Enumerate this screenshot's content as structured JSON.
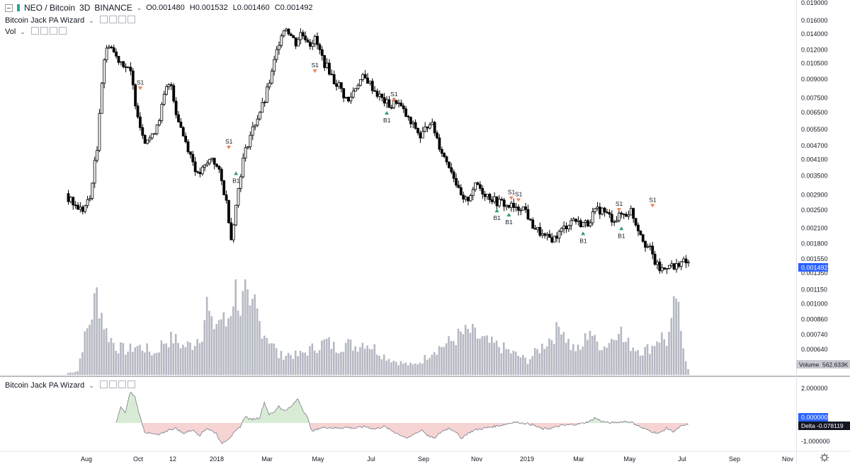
{
  "header": {
    "symbol": "NEO / Bitcoin",
    "interval": "3D",
    "exchange": "BINANCE",
    "open": "O0.001480",
    "high": "H0.001532",
    "low": "L0.001460",
    "close": "C0.001492"
  },
  "indicators": {
    "pa_wizard": "Bitcoin Jack PA Wizard",
    "vol": "Vol",
    "lower": "Bitcoin Jack PA Wizard"
  },
  "price_axis": {
    "ticks": [
      "0.019000",
      "0.016000",
      "0.014000",
      "0.012000",
      "0.010500",
      "0.009000",
      "0.007500",
      "0.006500",
      "0.005500",
      "0.004700",
      "0.004100",
      "0.003500",
      "0.002900",
      "0.002500",
      "0.002100",
      "0.001800",
      "0.001550",
      "0.001350",
      "0.001150",
      "0.001000",
      "0.000860",
      "0.000740",
      "0.000640"
    ],
    "last_price": "0.001492",
    "volume_label": "Volume",
    "volume_value": "562.633K"
  },
  "lower_axis": {
    "ticks": [
      "2.000000",
      "-1.000000"
    ],
    "zero_label": "0.000000",
    "delta_label": "Delta",
    "delta_value": "-0.078119"
  },
  "time_axis": [
    "Aug",
    "Oct",
    "12",
    "2018",
    "Mar",
    "May",
    "Jul",
    "Sep",
    "Nov",
    "2019",
    "Mar",
    "May",
    "Jul",
    "Sep",
    "Nov"
  ],
  "colors": {
    "up": "#ffffff",
    "down": "#000000",
    "sell": "#ef7d56",
    "buy": "#2e9e6a",
    "volume": "#b5b8c2",
    "pos_fill": "#d8ecd5",
    "neg_fill": "#f6d4d4",
    "last_price_bg": "#2962ff"
  },
  "chart_data": {
    "type": "candlestick",
    "scale": "log",
    "close_path": [
      [
        0,
        0.0028
      ],
      [
        3,
        0.0026
      ],
      [
        6,
        0.0025
      ],
      [
        9,
        0.0028
      ],
      [
        12,
        0.0045
      ],
      [
        15,
        0.011
      ],
      [
        17,
        0.0128
      ],
      [
        20,
        0.0112
      ],
      [
        23,
        0.0105
      ],
      [
        26,
        0.0095
      ],
      [
        28,
        0.0072
      ],
      [
        30,
        0.0057
      ],
      [
        32,
        0.005
      ],
      [
        35,
        0.0051
      ],
      [
        38,
        0.0062
      ],
      [
        41,
        0.0082
      ],
      [
        43,
        0.0085
      ],
      [
        45,
        0.0065
      ],
      [
        48,
        0.0052
      ],
      [
        51,
        0.0043
      ],
      [
        54,
        0.0035
      ],
      [
        57,
        0.0038
      ],
      [
        60,
        0.0042
      ],
      [
        63,
        0.0036
      ],
      [
        66,
        0.0027
      ],
      [
        68,
        0.0019
      ],
      [
        70,
        0.0026
      ],
      [
        73,
        0.0041
      ],
      [
        76,
        0.0052
      ],
      [
        79,
        0.0062
      ],
      [
        82,
        0.0073
      ],
      [
        85,
        0.0095
      ],
      [
        87,
        0.0118
      ],
      [
        89,
        0.0142
      ],
      [
        91,
        0.015
      ],
      [
        93,
        0.0138
      ],
      [
        95,
        0.0128
      ],
      [
        97,
        0.0141
      ],
      [
        99,
        0.0136
      ],
      [
        101,
        0.0128
      ],
      [
        103,
        0.0133
      ],
      [
        105,
        0.0118
      ],
      [
        107,
        0.0105
      ],
      [
        109,
        0.0098
      ],
      [
        111,
        0.0088
      ],
      [
        113,
        0.0085
      ],
      [
        115,
        0.0077
      ],
      [
        117,
        0.0072
      ],
      [
        119,
        0.008
      ],
      [
        121,
        0.0087
      ],
      [
        123,
        0.0091
      ],
      [
        125,
        0.0089
      ],
      [
        127,
        0.0083
      ],
      [
        129,
        0.0078
      ],
      [
        131,
        0.0074
      ],
      [
        133,
        0.0071
      ],
      [
        135,
        0.0069
      ],
      [
        137,
        0.0073
      ],
      [
        139,
        0.0068
      ],
      [
        141,
        0.0063
      ],
      [
        143,
        0.0058
      ],
      [
        145,
        0.0056
      ],
      [
        147,
        0.0051
      ],
      [
        149,
        0.0055
      ],
      [
        151,
        0.006
      ],
      [
        153,
        0.0054
      ],
      [
        155,
        0.0047
      ],
      [
        157,
        0.0042
      ],
      [
        159,
        0.0039
      ],
      [
        161,
        0.0035
      ],
      [
        163,
        0.003
      ],
      [
        165,
        0.0027
      ],
      [
        167,
        0.0028
      ],
      [
        169,
        0.0031
      ],
      [
        171,
        0.0032
      ],
      [
        173,
        0.003
      ],
      [
        175,
        0.0029
      ],
      [
        177,
        0.0028
      ],
      [
        179,
        0.0027
      ],
      [
        181,
        0.0027
      ],
      [
        183,
        0.0026
      ],
      [
        185,
        0.0026
      ],
      [
        187,
        0.0025
      ],
      [
        189,
        0.0026
      ],
      [
        191,
        0.0025
      ],
      [
        193,
        0.0022
      ],
      [
        195,
        0.0021
      ],
      [
        197,
        0.002
      ],
      [
        199,
        0.0019
      ],
      [
        201,
        0.0019
      ],
      [
        203,
        0.0019
      ],
      [
        205,
        0.002
      ],
      [
        207,
        0.0021
      ],
      [
        209,
        0.0022
      ],
      [
        211,
        0.0023
      ],
      [
        213,
        0.0022
      ],
      [
        215,
        0.0022
      ],
      [
        217,
        0.0022
      ],
      [
        219,
        0.0024
      ],
      [
        221,
        0.0025
      ],
      [
        223,
        0.0025
      ],
      [
        225,
        0.0024
      ],
      [
        227,
        0.0023
      ],
      [
        229,
        0.0023
      ],
      [
        231,
        0.0024
      ],
      [
        233,
        0.0024
      ],
      [
        235,
        0.0025
      ],
      [
        237,
        0.0022
      ],
      [
        239,
        0.002
      ],
      [
        241,
        0.0018
      ],
      [
        243,
        0.0017
      ],
      [
        245,
        0.0015
      ],
      [
        247,
        0.0014
      ],
      [
        249,
        0.0014
      ],
      [
        251,
        0.0015
      ],
      [
        253,
        0.0014
      ],
      [
        255,
        0.0015
      ],
      [
        257,
        0.0015
      ],
      [
        259,
        0.00149
      ]
    ],
    "volume_path": [
      [
        0,
        0.02
      ],
      [
        4,
        0.04
      ],
      [
        6,
        0.3
      ],
      [
        9,
        0.55
      ],
      [
        11,
        0.75
      ],
      [
        12,
        0.85
      ],
      [
        14,
        0.65
      ],
      [
        16,
        0.45
      ],
      [
        20,
        0.3
      ],
      [
        25,
        0.25
      ],
      [
        28,
        0.3
      ],
      [
        32,
        0.28
      ],
      [
        36,
        0.22
      ],
      [
        40,
        0.35
      ],
      [
        44,
        0.38
      ],
      [
        48,
        0.3
      ],
      [
        52,
        0.32
      ],
      [
        56,
        0.45
      ],
      [
        58,
        0.75
      ],
      [
        60,
        0.5
      ],
      [
        62,
        0.55
      ],
      [
        64,
        0.6
      ],
      [
        66,
        0.52
      ],
      [
        68,
        0.7
      ],
      [
        70,
        0.95
      ],
      [
        72,
        0.7
      ],
      [
        74,
        0.85
      ],
      [
        76,
        0.6
      ],
      [
        78,
        0.75
      ],
      [
        80,
        0.55
      ],
      [
        82,
        0.45
      ],
      [
        85,
        0.35
      ],
      [
        88,
        0.2
      ],
      [
        92,
        0.22
      ],
      [
        96,
        0.2
      ],
      [
        100,
        0.25
      ],
      [
        104,
        0.3
      ],
      [
        108,
        0.35
      ],
      [
        112,
        0.28
      ],
      [
        116,
        0.33
      ],
      [
        120,
        0.3
      ],
      [
        124,
        0.35
      ],
      [
        128,
        0.28
      ],
      [
        132,
        0.2
      ],
      [
        136,
        0.15
      ],
      [
        140,
        0.12
      ],
      [
        144,
        0.1
      ],
      [
        148,
        0.15
      ],
      [
        152,
        0.25
      ],
      [
        156,
        0.3
      ],
      [
        160,
        0.35
      ],
      [
        164,
        0.42
      ],
      [
        168,
        0.45
      ],
      [
        172,
        0.38
      ],
      [
        176,
        0.33
      ],
      [
        180,
        0.3
      ],
      [
        184,
        0.25
      ],
      [
        188,
        0.2
      ],
      [
        192,
        0.15
      ],
      [
        196,
        0.25
      ],
      [
        200,
        0.35
      ],
      [
        204,
        0.45
      ],
      [
        206,
        0.55
      ],
      [
        208,
        0.4
      ],
      [
        210,
        0.3
      ],
      [
        214,
        0.25
      ],
      [
        218,
        0.5
      ],
      [
        220,
        0.35
      ],
      [
        224,
        0.3
      ],
      [
        228,
        0.4
      ],
      [
        230,
        0.55
      ],
      [
        232,
        0.35
      ],
      [
        236,
        0.3
      ],
      [
        240,
        0.25
      ],
      [
        244,
        0.3
      ],
      [
        246,
        0.38
      ],
      [
        248,
        0.4
      ],
      [
        250,
        0.35
      ],
      [
        252,
        0.5
      ],
      [
        254,
        0.85
      ],
      [
        256,
        0.4
      ],
      [
        259,
        0.07
      ]
    ],
    "delta_path": [
      [
        20,
        0.0
      ],
      [
        22,
        0.9
      ],
      [
        24,
        0.6
      ],
      [
        26,
        1.8
      ],
      [
        28,
        1.5
      ],
      [
        30,
        0.4
      ],
      [
        32,
        -0.5
      ],
      [
        34,
        -0.6
      ],
      [
        38,
        -0.7
      ],
      [
        42,
        -0.4
      ],
      [
        45,
        -0.3
      ],
      [
        48,
        -0.6
      ],
      [
        52,
        -0.4
      ],
      [
        55,
        -0.7
      ],
      [
        58,
        -0.3
      ],
      [
        62,
        -0.6
      ],
      [
        64,
        -1.2
      ],
      [
        67,
        -0.9
      ],
      [
        70,
        -0.5
      ],
      [
        72,
        -0.2
      ],
      [
        74,
        0.4
      ],
      [
        76,
        0.2
      ],
      [
        80,
        0.3
      ],
      [
        82,
        1.2
      ],
      [
        84,
        0.5
      ],
      [
        86,
        0.6
      ],
      [
        88,
        1.0
      ],
      [
        90,
        0.7
      ],
      [
        93,
        0.9
      ],
      [
        96,
        1.4
      ],
      [
        98,
        0.8
      ],
      [
        100,
        0.3
      ],
      [
        102,
        -0.5
      ],
      [
        105,
        -0.3
      ],
      [
        108,
        -0.25
      ],
      [
        112,
        -0.3
      ],
      [
        116,
        -0.25
      ],
      [
        120,
        -0.3
      ],
      [
        124,
        -0.2
      ],
      [
        128,
        -0.35
      ],
      [
        132,
        -0.2
      ],
      [
        136,
        -0.5
      ],
      [
        139,
        -0.7
      ],
      [
        142,
        -0.9
      ],
      [
        145,
        -0.6
      ],
      [
        148,
        -0.4
      ],
      [
        150,
        -0.7
      ],
      [
        153,
        -0.9
      ],
      [
        156,
        -0.5
      ],
      [
        159,
        -0.3
      ],
      [
        162,
        -0.5
      ],
      [
        164,
        -0.9
      ],
      [
        167,
        -0.6
      ],
      [
        170,
        -0.4
      ],
      [
        174,
        -0.3
      ],
      [
        178,
        -0.2
      ],
      [
        182,
        -0.1
      ],
      [
        186,
        0.05
      ],
      [
        190,
        0.0
      ],
      [
        194,
        -0.1
      ],
      [
        198,
        -0.35
      ],
      [
        202,
        -0.3
      ],
      [
        206,
        -0.15
      ],
      [
        210,
        -0.1
      ],
      [
        214,
        -0.05
      ],
      [
        218,
        0.1
      ],
      [
        220,
        0.3
      ],
      [
        223,
        0.1
      ],
      [
        226,
        0.0
      ],
      [
        230,
        0.05
      ],
      [
        233,
        0.1
      ],
      [
        236,
        0.0
      ],
      [
        240,
        -0.3
      ],
      [
        244,
        -0.5
      ],
      [
        247,
        -0.6
      ],
      [
        250,
        -0.3
      ],
      [
        253,
        -0.5
      ],
      [
        256,
        -0.2
      ],
      [
        259,
        -0.08
      ]
    ],
    "signals": [
      {
        "label": "S1",
        "type": "sell",
        "x": 30,
        "price": 0.0082
      },
      {
        "label": "S1",
        "type": "sell",
        "x": 67,
        "price": 0.0046
      },
      {
        "label": "B1",
        "type": "buy",
        "x": 70,
        "price": 0.0036
      },
      {
        "label": "S1",
        "type": "sell",
        "x": 103,
        "price": 0.0097
      },
      {
        "label": "S1",
        "type": "sell",
        "x": 136,
        "price": 0.0073
      },
      {
        "label": "B1",
        "type": "buy",
        "x": 133,
        "price": 0.0065
      },
      {
        "label": "B1",
        "type": "buy",
        "x": 179,
        "price": 0.0025
      },
      {
        "label": "S1",
        "type": "sell",
        "x": 185,
        "price": 0.0028
      },
      {
        "label": "S1",
        "type": "sell",
        "x": 188,
        "price": 0.00275
      },
      {
        "label": "B1",
        "type": "buy",
        "x": 184,
        "price": 0.0024
      },
      {
        "label": "B1",
        "type": "buy",
        "x": 215,
        "price": 0.002
      },
      {
        "label": "S1",
        "type": "sell",
        "x": 230,
        "price": 0.0025
      },
      {
        "label": "B1",
        "type": "buy",
        "x": 231,
        "price": 0.0021
      },
      {
        "label": "S1",
        "type": "sell",
        "x": 244,
        "price": 0.0026
      }
    ]
  }
}
